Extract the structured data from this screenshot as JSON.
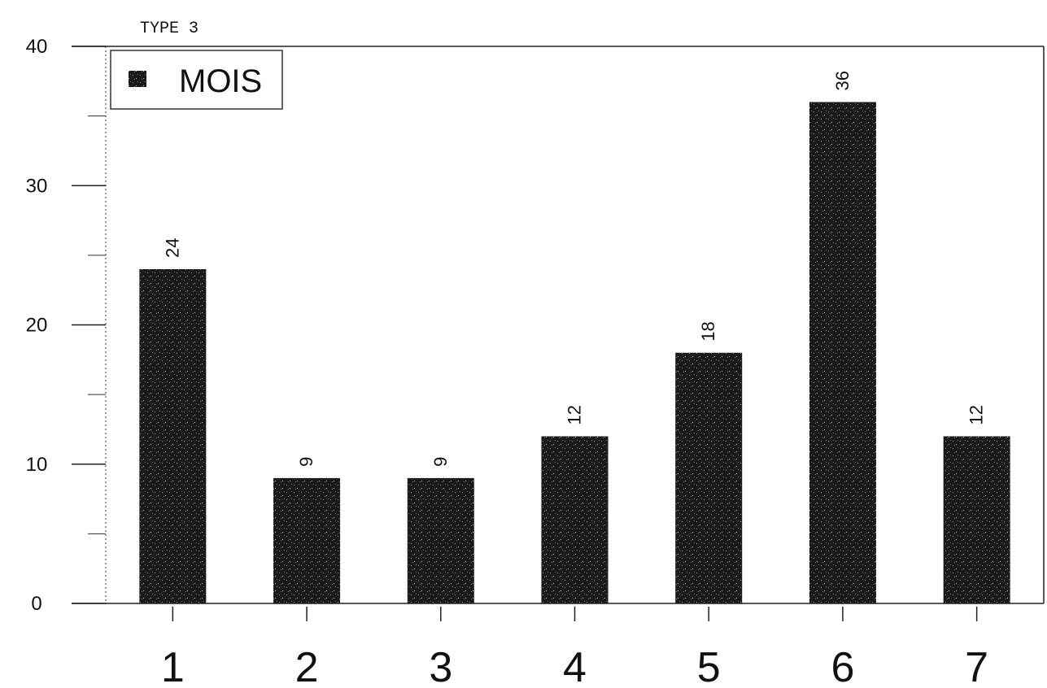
{
  "chart_data": {
    "type": "bar",
    "title": "TYPE 3",
    "xlabel": "",
    "ylabel": "",
    "categories": [
      "1",
      "2",
      "3",
      "4",
      "5",
      "6",
      "7"
    ],
    "series": [
      {
        "name": "MOIS",
        "values": [
          24,
          9,
          9,
          12,
          18,
          36,
          12
        ]
      }
    ],
    "ylim": [
      0,
      40
    ],
    "yticks": [
      "0",
      "10",
      "20",
      "30",
      "40"
    ],
    "data_labels": [
      "24",
      "9",
      "9",
      "12",
      "18",
      "36",
      "12"
    ],
    "legend": {
      "entries": [
        "MOIS"
      ],
      "placement": "top-left"
    },
    "grid": false,
    "colors": {
      "bar": "#1a1a1a",
      "axis": "#222222",
      "legend_border": "#333333"
    }
  }
}
